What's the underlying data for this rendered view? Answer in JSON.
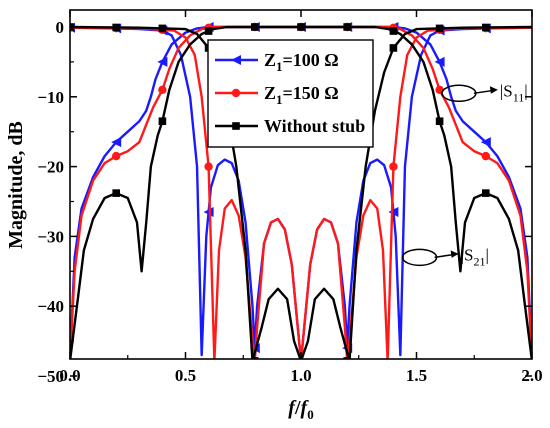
{
  "chart_data": {
    "type": "line",
    "xlabel": {
      "italic": "f",
      "slash": "/",
      "italic2": "f",
      "sub": "0"
    },
    "ylabel": "Magnitude, dB",
    "xlim": [
      0,
      2.0
    ],
    "ylim": [
      -50,
      2
    ],
    "xticks": [
      0,
      0.5,
      1.0,
      1.5,
      2.0
    ],
    "xtick_labels": [
      "0.0",
      "0.5",
      "1.0",
      "1.5",
      "2.0"
    ],
    "yticks": [
      0,
      -10,
      -20,
      -30,
      -40,
      -50
    ],
    "ytick_labels": [
      "0",
      "−10",
      "−20",
      "−30",
      "−40",
      "−50"
    ],
    "legend": {
      "placement": "top-center",
      "entries": [
        {
          "main": "Z",
          "sub": "1",
          "rest": "=100 Ω",
          "series": 0
        },
        {
          "main": "Z",
          "sub": "1",
          "rest": "=150 Ω",
          "series": 1
        },
        {
          "main": "Without stub",
          "sub": "",
          "rest": "",
          "series": 2
        }
      ]
    },
    "annotations": [
      {
        "main": "|S",
        "sub": "11",
        "tail": "|",
        "x": 1.77,
        "y": -9.5
      },
      {
        "main": "|S",
        "sub": "21",
        "tail": "|",
        "x": 1.6,
        "y": -33
      }
    ],
    "series": [
      {
        "color": "#1a1aff",
        "marker": "triangle-left",
        "s21": [
          [
            0,
            -50
          ],
          [
            0.02,
            -33
          ],
          [
            0.05,
            -26
          ],
          [
            0.1,
            -21.5
          ],
          [
            0.15,
            -18.5
          ],
          [
            0.2,
            -16.5
          ],
          [
            0.25,
            -15
          ],
          [
            0.3,
            -13.5
          ],
          [
            0.33,
            -12
          ],
          [
            0.35,
            -10
          ],
          [
            0.37,
            -7.5
          ],
          [
            0.4,
            -5
          ],
          [
            0.44,
            -2.5
          ],
          [
            0.5,
            -0.8
          ],
          [
            0.55,
            -0.2
          ],
          [
            0.6,
            0
          ],
          [
            1.4,
            0
          ],
          [
            1.45,
            -0.2
          ],
          [
            1.5,
            -0.8
          ],
          [
            1.56,
            -2.5
          ],
          [
            1.6,
            -5
          ],
          [
            1.63,
            -7.5
          ],
          [
            1.65,
            -10
          ],
          [
            1.67,
            -12
          ],
          [
            1.7,
            -13.5
          ],
          [
            1.75,
            -15
          ],
          [
            1.8,
            -16.5
          ],
          [
            1.85,
            -18.5
          ],
          [
            1.9,
            -21.5
          ],
          [
            1.95,
            -26
          ],
          [
            1.98,
            -33
          ],
          [
            2.0,
            -50
          ]
        ],
        "s11": [
          [
            0,
            -0.1
          ],
          [
            0.2,
            -0.2
          ],
          [
            0.3,
            -0.3
          ],
          [
            0.4,
            -0.5
          ],
          [
            0.44,
            -1.2
          ],
          [
            0.48,
            -4
          ],
          [
            0.52,
            -10
          ],
          [
            0.55,
            -20
          ],
          [
            0.57,
            -47
          ],
          [
            0.59,
            -30
          ],
          [
            0.61,
            -23
          ],
          [
            0.64,
            -19.8
          ],
          [
            0.67,
            -19
          ],
          [
            0.7,
            -19.5
          ],
          [
            0.73,
            -22
          ],
          [
            0.76,
            -28
          ],
          [
            0.79,
            -40
          ],
          [
            0.8,
            -46
          ],
          [
            0.81,
            -40
          ],
          [
            0.84,
            -31
          ],
          [
            0.87,
            -28
          ],
          [
            0.9,
            -27.5
          ],
          [
            0.93,
            -29
          ],
          [
            0.96,
            -34
          ],
          [
            1.0,
            -50
          ],
          [
            1.04,
            -34
          ],
          [
            1.07,
            -29
          ],
          [
            1.1,
            -27.5
          ],
          [
            1.13,
            -28
          ],
          [
            1.16,
            -31
          ],
          [
            1.19,
            -40
          ],
          [
            1.2,
            -46
          ],
          [
            1.21,
            -40
          ],
          [
            1.24,
            -28
          ],
          [
            1.27,
            -22
          ],
          [
            1.3,
            -19.5
          ],
          [
            1.33,
            -19
          ],
          [
            1.36,
            -19.8
          ],
          [
            1.39,
            -23
          ],
          [
            1.41,
            -30
          ],
          [
            1.43,
            -47
          ],
          [
            1.45,
            -20
          ],
          [
            1.48,
            -10
          ],
          [
            1.52,
            -4
          ],
          [
            1.56,
            -1.2
          ],
          [
            1.6,
            -0.5
          ],
          [
            1.7,
            -0.3
          ],
          [
            1.8,
            -0.2
          ],
          [
            2.0,
            -0.1
          ]
        ],
        "s21_markers": [
          0.2,
          0.4,
          0.6,
          0.8,
          1.0,
          1.2,
          1.4,
          1.6,
          1.8
        ],
        "s11_markers": [
          0.0,
          0.2,
          0.4,
          0.6,
          0.8,
          1.2,
          1.4,
          1.6,
          1.8
        ]
      },
      {
        "color": "#ff1a1a",
        "marker": "circle",
        "s21": [
          [
            0,
            -50
          ],
          [
            0.02,
            -35
          ],
          [
            0.05,
            -27
          ],
          [
            0.1,
            -22
          ],
          [
            0.15,
            -19.5
          ],
          [
            0.2,
            -18.5
          ],
          [
            0.25,
            -17.8
          ],
          [
            0.3,
            -16.5
          ],
          [
            0.33,
            -14
          ],
          [
            0.36,
            -11.5
          ],
          [
            0.4,
            -9
          ],
          [
            0.43,
            -6
          ],
          [
            0.47,
            -3
          ],
          [
            0.52,
            -1.2
          ],
          [
            0.57,
            -0.3
          ],
          [
            0.62,
            0
          ],
          [
            1.38,
            0
          ],
          [
            1.43,
            -0.3
          ],
          [
            1.48,
            -1.2
          ],
          [
            1.53,
            -3
          ],
          [
            1.57,
            -6
          ],
          [
            1.6,
            -9
          ],
          [
            1.64,
            -11.5
          ],
          [
            1.67,
            -14
          ],
          [
            1.7,
            -16.5
          ],
          [
            1.75,
            -17.8
          ],
          [
            1.8,
            -18.5
          ],
          [
            1.85,
            -19.5
          ],
          [
            1.9,
            -22
          ],
          [
            1.95,
            -27
          ],
          [
            1.98,
            -35
          ],
          [
            2.0,
            -50
          ]
        ],
        "s11": [
          [
            0,
            -0.1
          ],
          [
            0.3,
            -0.2
          ],
          [
            0.45,
            -0.5
          ],
          [
            0.5,
            -1.5
          ],
          [
            0.54,
            -4
          ],
          [
            0.57,
            -10
          ],
          [
            0.6,
            -20
          ],
          [
            0.625,
            -50
          ],
          [
            0.645,
            -32
          ],
          [
            0.67,
            -26
          ],
          [
            0.7,
            -24.8
          ],
          [
            0.73,
            -27
          ],
          [
            0.76,
            -33
          ],
          [
            0.79,
            -45
          ],
          [
            0.8,
            -48
          ],
          [
            0.81,
            -43
          ],
          [
            0.84,
            -31
          ],
          [
            0.87,
            -28
          ],
          [
            0.9,
            -27.5
          ],
          [
            0.93,
            -29
          ],
          [
            0.96,
            -34
          ],
          [
            1.0,
            -50
          ],
          [
            1.04,
            -34
          ],
          [
            1.07,
            -29
          ],
          [
            1.1,
            -27.5
          ],
          [
            1.13,
            -28
          ],
          [
            1.16,
            -31
          ],
          [
            1.19,
            -43
          ],
          [
            1.2,
            -48
          ],
          [
            1.21,
            -45
          ],
          [
            1.24,
            -33
          ],
          [
            1.27,
            -27
          ],
          [
            1.3,
            -24.8
          ],
          [
            1.33,
            -26
          ],
          [
            1.355,
            -32
          ],
          [
            1.375,
            -50
          ],
          [
            1.4,
            -20
          ],
          [
            1.43,
            -10
          ],
          [
            1.46,
            -4
          ],
          [
            1.5,
            -1.5
          ],
          [
            1.55,
            -0.5
          ],
          [
            1.7,
            -0.2
          ],
          [
            2.0,
            -0.1
          ]
        ],
        "s21_markers": [
          0.2,
          0.4,
          0.6,
          0.8,
          1.0,
          1.2,
          1.4,
          1.6,
          1.8
        ],
        "s11_markers": [
          0.0,
          0.2,
          0.4,
          0.6,
          0.8,
          1.2,
          1.4,
          1.6,
          1.8
        ]
      },
      {
        "color": "#000000",
        "marker": "square",
        "s21": [
          [
            0,
            -50
          ],
          [
            0.03,
            -40
          ],
          [
            0.06,
            -32
          ],
          [
            0.1,
            -27.5
          ],
          [
            0.15,
            -24.5
          ],
          [
            0.2,
            -23.8
          ],
          [
            0.25,
            -24.5
          ],
          [
            0.29,
            -28
          ],
          [
            0.31,
            -35
          ],
          [
            0.33,
            -28
          ],
          [
            0.35,
            -20
          ],
          [
            0.38,
            -15.5
          ],
          [
            0.4,
            -13.5
          ],
          [
            0.43,
            -9
          ],
          [
            0.47,
            -5
          ],
          [
            0.52,
            -2.5
          ],
          [
            0.57,
            -1
          ],
          [
            0.62,
            -0.3
          ],
          [
            0.68,
            0
          ],
          [
            1.32,
            0
          ],
          [
            1.38,
            -0.3
          ],
          [
            1.43,
            -1
          ],
          [
            1.48,
            -2.5
          ],
          [
            1.53,
            -5
          ],
          [
            1.57,
            -9
          ],
          [
            1.6,
            -13.5
          ],
          [
            1.62,
            -15.5
          ],
          [
            1.65,
            -20
          ],
          [
            1.67,
            -28
          ],
          [
            1.69,
            -35
          ],
          [
            1.71,
            -28
          ],
          [
            1.75,
            -24.5
          ],
          [
            1.8,
            -23.8
          ],
          [
            1.85,
            -24.5
          ],
          [
            1.9,
            -27.5
          ],
          [
            1.94,
            -32
          ],
          [
            1.97,
            -40
          ],
          [
            2.0,
            -50
          ]
        ],
        "s11": [
          [
            0,
            0
          ],
          [
            0.3,
            -0.1
          ],
          [
            0.5,
            -0.3
          ],
          [
            0.55,
            -1
          ],
          [
            0.6,
            -3
          ],
          [
            0.64,
            -6.5
          ],
          [
            0.68,
            -12
          ],
          [
            0.72,
            -20
          ],
          [
            0.76,
            -32
          ],
          [
            0.79,
            -50
          ],
          [
            0.83,
            -43
          ],
          [
            0.86,
            -39
          ],
          [
            0.9,
            -37.5
          ],
          [
            0.94,
            -39
          ],
          [
            0.97,
            -45
          ],
          [
            1.0,
            -50
          ],
          [
            1.03,
            -45
          ],
          [
            1.06,
            -39
          ],
          [
            1.1,
            -37.5
          ],
          [
            1.14,
            -39
          ],
          [
            1.17,
            -43
          ],
          [
            1.21,
            -50
          ],
          [
            1.24,
            -32
          ],
          [
            1.28,
            -20
          ],
          [
            1.32,
            -12
          ],
          [
            1.36,
            -6.5
          ],
          [
            1.4,
            -3
          ],
          [
            1.45,
            -1
          ],
          [
            1.5,
            -0.3
          ],
          [
            1.7,
            -0.1
          ],
          [
            2.0,
            0
          ]
        ],
        "s21_markers": [
          0.2,
          0.4,
          0.6,
          0.8,
          1.0,
          1.2,
          1.4,
          1.6,
          1.8
        ],
        "s11_markers": [
          0.0,
          0.2,
          0.4,
          0.6,
          0.8,
          1.2,
          1.4,
          1.6,
          1.8
        ]
      }
    ]
  }
}
